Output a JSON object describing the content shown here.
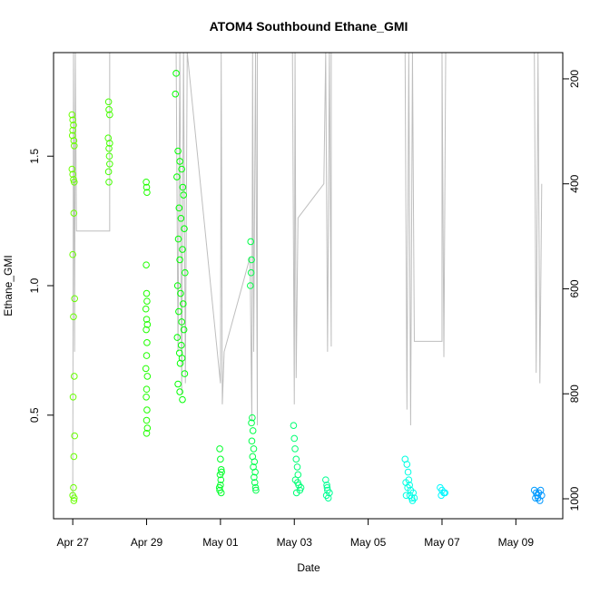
{
  "chart_data": {
    "type": "scatter",
    "title": "ATOM4 Southbound Ethane_GMI",
    "xlabel": "Date",
    "ylabel": "Ethane_GMI",
    "xlim": [
      116.48,
      130.27
    ],
    "ylim": [
      0.1,
      1.9
    ],
    "y2lim": [
      1038,
      150
    ],
    "xticks": [
      {
        "value": 117,
        "label": "Apr 27"
      },
      {
        "value": 119,
        "label": "Apr 29"
      },
      {
        "value": 121,
        "label": "May 01"
      },
      {
        "value": 123,
        "label": "May 03"
      },
      {
        "value": 125,
        "label": "May 05"
      },
      {
        "value": 127,
        "label": "May 07"
      },
      {
        "value": 129,
        "label": "May 09"
      }
    ],
    "yticks": [
      0.5,
      {
        "value": 1.0,
        "label": "1.0"
      },
      1.5
    ],
    "y2ticks": [
      200,
      400,
      600,
      800,
      1000
    ],
    "series": [
      {
        "type": "scatter",
        "hue_range": [
          95,
          205
        ],
        "x": [
          116.98,
          117.0,
          117.02,
          117.0,
          116.99,
          117.03,
          117.04,
          116.98,
          117.0,
          117.02,
          117.04,
          117.03,
          117.0,
          117.05,
          117.02,
          117.04,
          117.01,
          117.05,
          117.03,
          117.02,
          117.0,
          117.04,
          117.03,
          117.97,
          117.98,
          118.0,
          117.96,
          118.0,
          117.98,
          117.99,
          118.0,
          117.97,
          117.98,
          118.99,
          119.0,
          119.01,
          118.99,
          119.0,
          119.01,
          118.98,
          119.0,
          119.02,
          118.99,
          119.01,
          119.0,
          118.98,
          119.02,
          119.0,
          118.99,
          119.01,
          119.0,
          119.02,
          119.0,
          119.8,
          119.78,
          119.85,
          119.9,
          119.95,
          119.82,
          119.98,
          120.0,
          119.88,
          119.93,
          120.02,
          119.86,
          119.97,
          119.9,
          120.04,
          119.84,
          119.92,
          119.99,
          119.87,
          119.95,
          120.01,
          119.83,
          119.94,
          119.89,
          119.96,
          119.91,
          120.03,
          119.85,
          119.9,
          119.97,
          120.98,
          121.0,
          121.02,
          120.99,
          121.01,
          121.0,
          120.98,
          121.02,
          121.03,
          120.97,
          121.82,
          121.84,
          121.83,
          121.81,
          121.86,
          121.84,
          121.88,
          121.85,
          121.9,
          121.87,
          121.92,
          121.89,
          121.94,
          121.91,
          121.93,
          121.95,
          121.96,
          122.98,
          123.0,
          123.02,
          123.05,
          123.08,
          123.1,
          123.03,
          123.12,
          123.15,
          123.06,
          123.18,
          123.09,
          123.85,
          123.88,
          123.9,
          123.87,
          123.92,
          123.95,
          123.89,
          126.0,
          126.05,
          126.08,
          126.1,
          126.12,
          126.15,
          126.03,
          126.18,
          126.2,
          126.07,
          126.22,
          126.13,
          126.25,
          126.02,
          126.95,
          127.0,
          127.05,
          126.98,
          127.08,
          129.5,
          129.55,
          129.58,
          129.6,
          129.65,
          129.62,
          129.7,
          129.53,
          129.67
        ],
        "values": [
          1.66,
          1.64,
          1.62,
          1.6,
          1.58,
          1.56,
          1.54,
          1.45,
          1.43,
          1.41,
          1.4,
          1.28,
          1.12,
          0.95,
          0.88,
          0.65,
          0.57,
          0.42,
          0.34,
          0.22,
          0.19,
          0.18,
          0.17,
          1.71,
          1.68,
          1.66,
          1.57,
          1.55,
          1.53,
          1.5,
          1.47,
          1.44,
          1.4,
          1.4,
          1.38,
          1.36,
          1.08,
          0.97,
          0.94,
          0.91,
          0.87,
          0.85,
          0.83,
          0.78,
          0.73,
          0.68,
          0.65,
          0.6,
          0.57,
          0.52,
          0.48,
          0.45,
          0.43,
          1.82,
          1.74,
          1.52,
          1.48,
          1.45,
          1.42,
          1.38,
          1.35,
          1.3,
          1.26,
          1.22,
          1.18,
          1.14,
          1.1,
          1.05,
          1.0,
          0.97,
          0.93,
          0.9,
          0.86,
          0.83,
          0.8,
          0.77,
          0.74,
          0.72,
          0.7,
          0.66,
          0.62,
          0.59,
          0.56,
          0.37,
          0.33,
          0.29,
          0.27,
          0.25,
          0.23,
          0.21,
          0.2,
          0.28,
          0.22,
          1.17,
          1.1,
          1.05,
          1.0,
          0.49,
          0.47,
          0.44,
          0.4,
          0.37,
          0.34,
          0.32,
          0.3,
          0.28,
          0.26,
          0.24,
          0.22,
          0.21,
          0.46,
          0.41,
          0.37,
          0.33,
          0.3,
          0.27,
          0.25,
          0.23,
          0.21,
          0.2,
          0.22,
          0.24,
          0.25,
          0.23,
          0.21,
          0.19,
          0.18,
          0.2,
          0.22,
          0.33,
          0.31,
          0.28,
          0.25,
          0.23,
          0.21,
          0.19,
          0.18,
          0.17,
          0.22,
          0.2,
          0.19,
          0.18,
          0.24,
          0.22,
          0.21,
          0.2,
          0.19,
          0.2,
          0.21,
          0.2,
          0.19,
          0.18,
          0.17,
          0.2,
          0.19,
          0.18,
          0.21
        ]
      },
      {
        "type": "line",
        "axis": "y2",
        "color": "#bebebe",
        "x": [
          117.0,
          117.02,
          117.05,
          117.07,
          117.1,
          118.0,
          118.0,
          118.6,
          119.8,
          119.85,
          119.9,
          119.95,
          120.0,
          120.05,
          120.1,
          121.0,
          121.02,
          121.05,
          121.1,
          121.8,
          121.85,
          121.87,
          121.9,
          121.95,
          122.0,
          122.0,
          122.95,
          123.0,
          123.02,
          123.05,
          123.1,
          123.8,
          123.85,
          123.9,
          123.95,
          124.0,
          124.0,
          126.0,
          126.05,
          126.1,
          126.15,
          126.2,
          126.25,
          127.0,
          127.0,
          127.05,
          127.1,
          129.5,
          129.55,
          129.6,
          129.65,
          129.7
        ],
        "values": [
          1000,
          150,
          720,
          150,
          490,
          490,
          150,
          150,
          150,
          720,
          150,
          800,
          150,
          780,
          150,
          780,
          150,
          820,
          720,
          540,
          850,
          150,
          720,
          150,
          860,
          150,
          150,
          820,
          150,
          770,
          465,
          400,
          150,
          720,
          150,
          710,
          150,
          150,
          830,
          150,
          860,
          150,
          700,
          700,
          150,
          730,
          150,
          150,
          760,
          150,
          780,
          400
        ]
      }
    ]
  }
}
